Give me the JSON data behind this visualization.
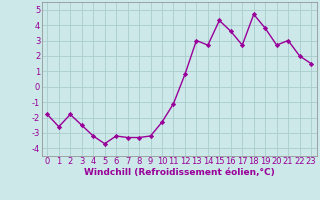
{
  "x": [
    0,
    1,
    2,
    3,
    4,
    5,
    6,
    7,
    8,
    9,
    10,
    11,
    12,
    13,
    14,
    15,
    16,
    17,
    18,
    19,
    20,
    21,
    22,
    23
  ],
  "y": [
    -1.8,
    -2.6,
    -1.8,
    -2.5,
    -3.2,
    -3.7,
    -3.2,
    -3.3,
    -3.3,
    -3.2,
    -2.3,
    -1.1,
    0.8,
    3.0,
    2.7,
    4.3,
    3.6,
    2.7,
    4.7,
    3.8,
    2.7,
    3.0,
    2.0,
    1.5
  ],
  "line_color": "#990099",
  "marker": "D",
  "marker_size": 2.2,
  "linewidth": 1.0,
  "xlabel": "Windchill (Refroidissement éolien,°C)",
  "xlim": [
    -0.5,
    23.5
  ],
  "ylim": [
    -4.5,
    5.5
  ],
  "yticks": [
    -4,
    -3,
    -2,
    -1,
    0,
    1,
    2,
    3,
    4,
    5
  ],
  "xticks": [
    0,
    1,
    2,
    3,
    4,
    5,
    6,
    7,
    8,
    9,
    10,
    11,
    12,
    13,
    14,
    15,
    16,
    17,
    18,
    19,
    20,
    21,
    22,
    23
  ],
  "bg_color": "#cce8e8",
  "grid_color": "#aacccc",
  "xlabel_fontsize": 6.5,
  "tick_fontsize": 6.0,
  "line_color2": "#880088"
}
